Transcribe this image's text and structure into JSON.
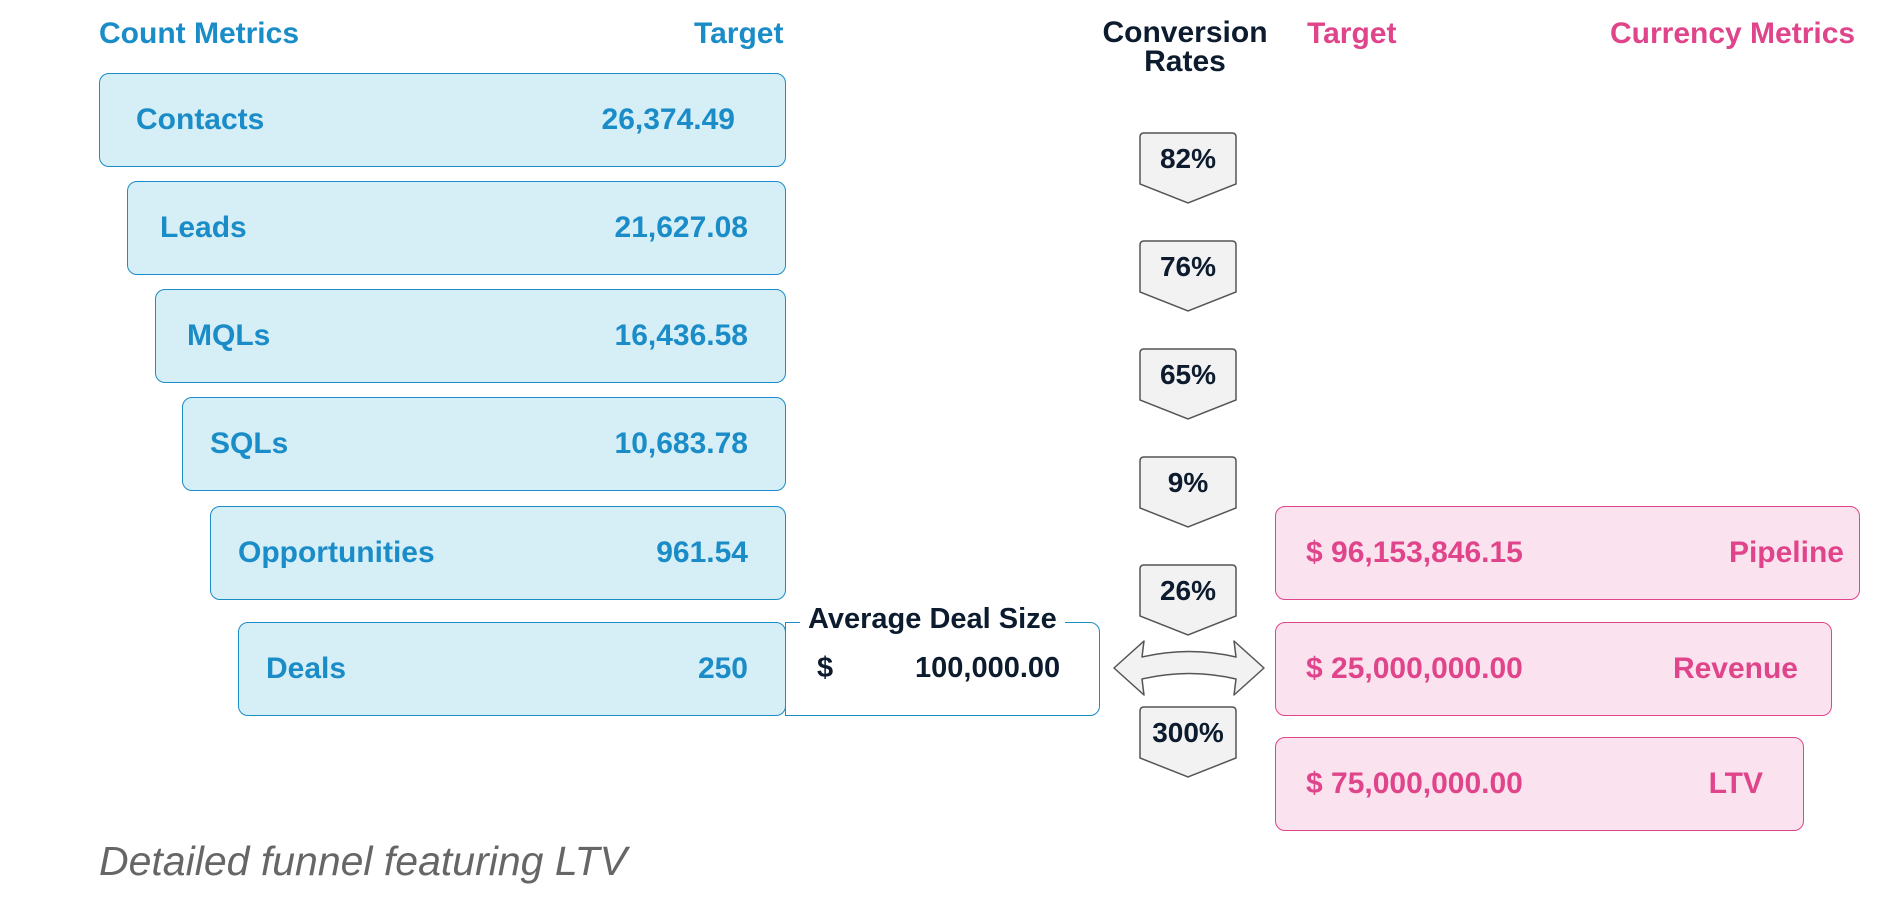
{
  "headers": {
    "count_metrics": "Count Metrics",
    "count_target": "Target",
    "conversion_rates_line1": "Conversion",
    "conversion_rates_line2": "Rates",
    "currency_target": "Target",
    "currency_metrics": "Currency Metrics"
  },
  "count_rows": [
    {
      "label": "Contacts",
      "value": "26,374.49"
    },
    {
      "label": "Leads",
      "value": "21,627.08"
    },
    {
      "label": "MQLs",
      "value": "16,436.58"
    },
    {
      "label": "SQLs",
      "value": "10,683.78"
    },
    {
      "label": "Opportunities",
      "value": "961.54"
    },
    {
      "label": "Deals",
      "value": "250"
    }
  ],
  "conversion_rates": [
    "82%",
    "76%",
    "65%",
    "9%",
    "26%",
    "300%"
  ],
  "average_deal_size": {
    "title": "Average Deal Size",
    "currency": "$",
    "value": "100,000.00"
  },
  "currency_rows": [
    {
      "amount": "$ 96,153,846.15",
      "name": "Pipeline"
    },
    {
      "amount": "$ 25,000,000.00",
      "name": "Revenue"
    },
    {
      "amount": "$ 75,000,000.00",
      "name": "LTV"
    }
  ],
  "caption": "Detailed funnel featuring LTV",
  "colors": {
    "count_accent": "#1a8cc7",
    "count_fill": "#d6eef6",
    "currency_accent": "#e0448a",
    "currency_fill": "#fae3ee",
    "rate_fill": "#f2f2f2",
    "text_dark": "#0d1b2e"
  }
}
